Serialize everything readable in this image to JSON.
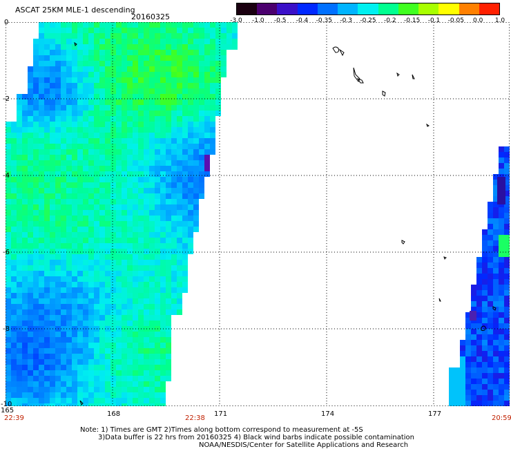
{
  "header": {
    "title": "ASCAT 25KM MLE-1 descending",
    "date": "20160325"
  },
  "colorbar": {
    "labels": [
      "-3.0",
      "-1.0",
      "-0.5",
      "-0.4",
      "-0.35",
      "-0.3",
      "-0.25",
      "-0.2",
      "-0.15",
      "-0.1",
      "-0.05",
      "0.0",
      "1.0"
    ],
    "colors": [
      "#1a0010",
      "#4b006e",
      "#3a10c8",
      "#0028ff",
      "#0070ff",
      "#00b4ff",
      "#00f0f0",
      "#00ff90",
      "#40ff20",
      "#a8ff00",
      "#ffff00",
      "#ff8000",
      "#ff2000"
    ]
  },
  "axes": {
    "x_ticks": [
      "165",
      "168",
      "171",
      "174",
      "177"
    ],
    "y_ticks": [
      "0",
      "-2",
      "-4",
      "-6",
      "-8",
      "-10"
    ],
    "times": {
      "left": "22:39",
      "middle": "22:38",
      "right": "20:59"
    }
  },
  "notes": {
    "line1": "Note: 1) Times are GMT 2)Times along bottom correspond to measurement at -5S",
    "line2": "3)Data buffer is 22 hrs from 20160325 4) Black wind barbs indicate possible contamination",
    "line3": "NOAA/NESDIS/Center for Satellite Applications and Research"
  }
}
